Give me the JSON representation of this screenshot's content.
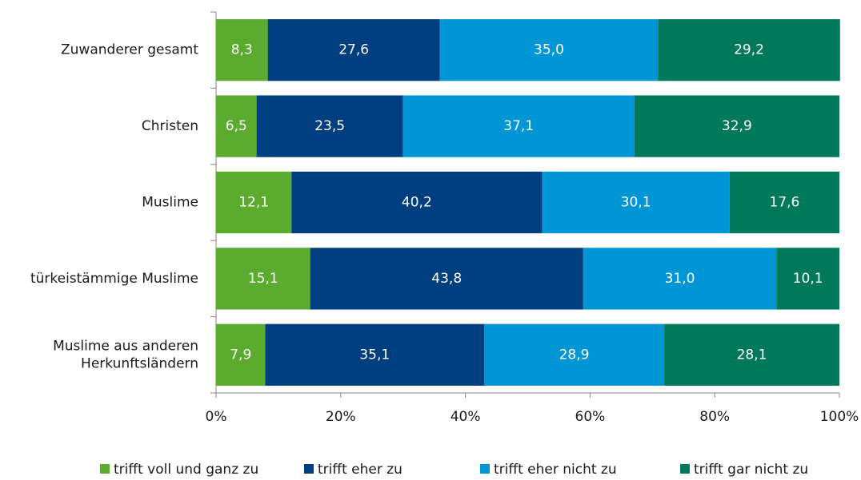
{
  "chart_data": {
    "type": "stacked_bar_horizontal",
    "categories": [
      "Zuwanderer gesamt",
      "Christen",
      "Muslime",
      "türkeistämmige Muslime",
      "Muslime aus anderen\nHerkunftsländern"
    ],
    "series": [
      {
        "name": "trifft voll und ganz zu",
        "color": "#5aab2e",
        "values": [
          8.3,
          6.5,
          12.1,
          15.1,
          7.9
        ],
        "value_labels": [
          "8,3",
          "6,5",
          "12,1",
          "15,1",
          "7,9"
        ]
      },
      {
        "name": "trifft eher zu",
        "color": "#003f7f",
        "values": [
          27.6,
          23.5,
          40.2,
          43.8,
          35.1
        ],
        "value_labels": [
          "27,6",
          "23,5",
          "40,2",
          "43,8",
          "35,1"
        ]
      },
      {
        "name": "trifft eher nicht zu",
        "color": "#0096d6",
        "values": [
          35.0,
          37.1,
          30.1,
          31.0,
          28.9
        ],
        "value_labels": [
          "35,0",
          "37,1",
          "30,1",
          "31,0",
          "28,9"
        ]
      },
      {
        "name": "trifft gar nicht zu",
        "color": "#00785a",
        "values": [
          29.2,
          32.9,
          17.6,
          10.1,
          28.1
        ],
        "value_labels": [
          "29,2",
          "32,9",
          "17,6",
          "10,1",
          "28,1"
        ]
      }
    ],
    "xlim": [
      0,
      100
    ],
    "xticks": [
      {
        "value": 0,
        "label": "0%"
      },
      {
        "value": 20,
        "label": "20%"
      },
      {
        "value": 40,
        "label": "40%"
      },
      {
        "value": 60,
        "label": "60%"
      },
      {
        "value": 80,
        "label": "80%"
      },
      {
        "value": 100,
        "label": "100%"
      }
    ]
  }
}
